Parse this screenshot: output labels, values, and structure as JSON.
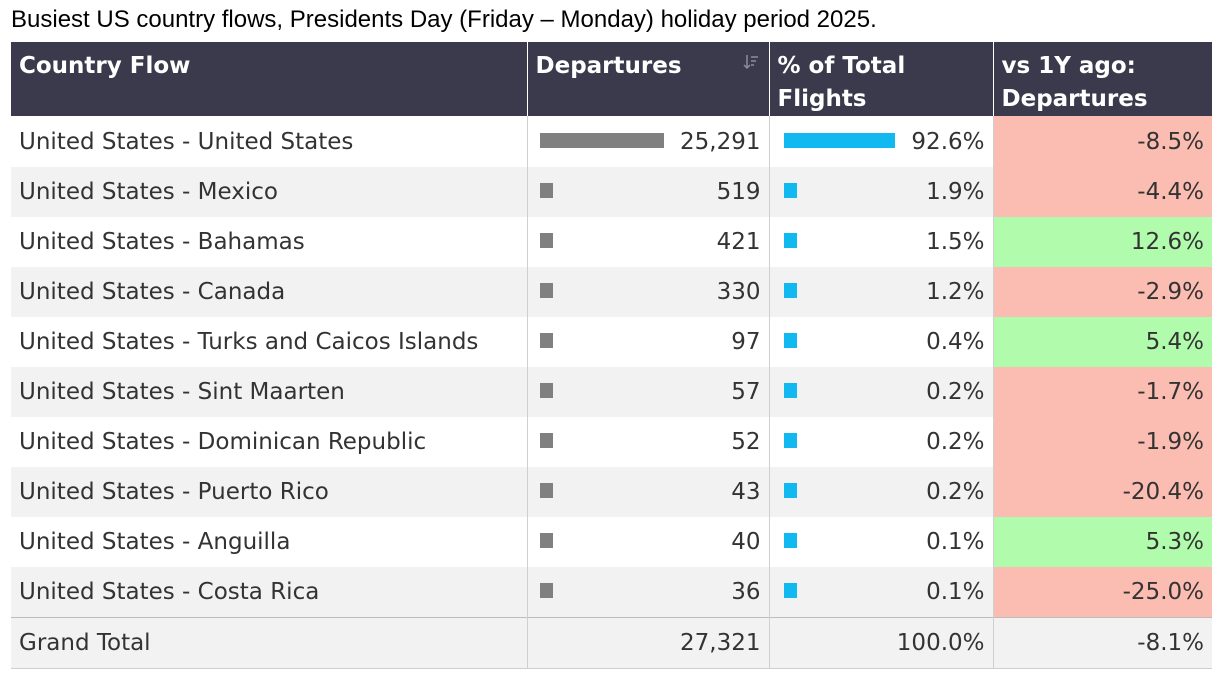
{
  "caption": "Busiest US country flows, Presidents Day (Friday – Monday) holiday period 2025.",
  "header": {
    "col1": "Country Flow",
    "col2": "Departures",
    "col3_line1": "% of Total",
    "col3_line2": "Flights",
    "col4_line1": "vs 1Y ago:",
    "col4_line2": "Departures",
    "sort_icon": "sort-descending-icon"
  },
  "colors": {
    "header_bg": "#3b3a4c",
    "departures_bar": "#808080",
    "pct_bar": "#12b8f0",
    "negative_bg": "#fbbcb2",
    "positive_bg": "#b1fbac"
  },
  "chart_data": {
    "type": "table",
    "columns": [
      "Country Flow",
      "Departures",
      "% of Total Flights",
      "vs 1Y ago: Departures"
    ],
    "rows": [
      {
        "flow": "United States - United States",
        "departures": 25291,
        "departures_label": "25,291",
        "pct": 92.6,
        "pct_label": "92.6%",
        "yoy": -8.5,
        "yoy_label": "-8.5%"
      },
      {
        "flow": "United States - Mexico",
        "departures": 519,
        "departures_label": "519",
        "pct": 1.9,
        "pct_label": "1.9%",
        "yoy": -4.4,
        "yoy_label": "-4.4%"
      },
      {
        "flow": "United States - Bahamas",
        "departures": 421,
        "departures_label": "421",
        "pct": 1.5,
        "pct_label": "1.5%",
        "yoy": 12.6,
        "yoy_label": "12.6%"
      },
      {
        "flow": "United States - Canada",
        "departures": 330,
        "departures_label": "330",
        "pct": 1.2,
        "pct_label": "1.2%",
        "yoy": -2.9,
        "yoy_label": "-2.9%"
      },
      {
        "flow": "United States - Turks and Caicos Islands",
        "departures": 97,
        "departures_label": "97",
        "pct": 0.4,
        "pct_label": "0.4%",
        "yoy": 5.4,
        "yoy_label": "5.4%"
      },
      {
        "flow": "United States - Sint Maarten",
        "departures": 57,
        "departures_label": "57",
        "pct": 0.2,
        "pct_label": "0.2%",
        "yoy": -1.7,
        "yoy_label": "-1.7%"
      },
      {
        "flow": "United States - Dominican Republic",
        "departures": 52,
        "departures_label": "52",
        "pct": 0.2,
        "pct_label": "0.2%",
        "yoy": -1.9,
        "yoy_label": "-1.9%"
      },
      {
        "flow": "United States - Puerto Rico",
        "departures": 43,
        "departures_label": "43",
        "pct": 0.2,
        "pct_label": "0.2%",
        "yoy": -20.4,
        "yoy_label": "-20.4%"
      },
      {
        "flow": "United States - Anguilla",
        "departures": 40,
        "departures_label": "40",
        "pct": 0.1,
        "pct_label": "0.1%",
        "yoy": 5.3,
        "yoy_label": "5.3%"
      },
      {
        "flow": "United States - Costa Rica",
        "departures": 36,
        "departures_label": "36",
        "pct": 0.1,
        "pct_label": "0.1%",
        "yoy": -25.0,
        "yoy_label": "-25.0%"
      }
    ],
    "total": {
      "label": "Grand Total",
      "departures_label": "27,321",
      "pct_label": "100.0%",
      "yoy_label": "-8.1%"
    }
  }
}
